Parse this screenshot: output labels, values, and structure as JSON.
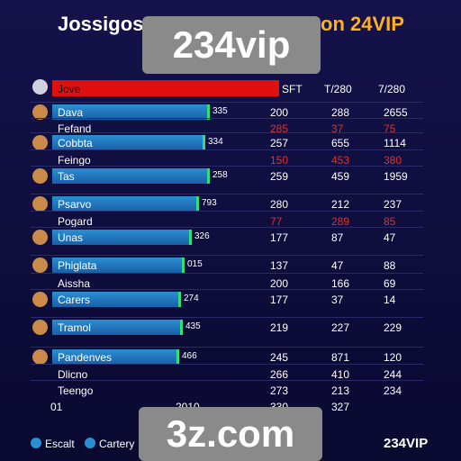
{
  "header": {
    "title_left": "Jossigos",
    "title_right": "on 24VIP",
    "overlay_top": "234vip"
  },
  "columns": {
    "name": "Jove",
    "c1": "SFT",
    "c2": "T/280",
    "c3": "7/280"
  },
  "rows": [
    {
      "name": "Dava",
      "tag": "335",
      "c1": "200",
      "c2": "288",
      "c3": "2655",
      "bar": true,
      "red": false
    },
    {
      "name": "Fefand",
      "c1": "285",
      "c2": "37",
      "c3": "75",
      "bar": false,
      "red": true
    },
    {
      "name": "Cobbta",
      "tag": "334",
      "c1": "257",
      "c2": "655",
      "c3": "1114",
      "bar": true,
      "red": false
    },
    {
      "name": "Feingo",
      "c1": "150",
      "c2": "453",
      "c3": "380",
      "bar": false,
      "red": true
    },
    {
      "name": "Tas",
      "tag": "258",
      "c1": "259",
      "c2": "459",
      "c3": "1959",
      "bar": true,
      "red": false
    },
    {
      "name": "Psarvo",
      "tag": "793",
      "c1": "280",
      "c2": "212",
      "c3": "237",
      "bar": true,
      "red": false
    },
    {
      "name": "Pogard",
      "c1": "77",
      "c2": "289",
      "c3": "85",
      "bar": false,
      "red": true
    },
    {
      "name": "Unas",
      "tag": "326",
      "c1": "177",
      "c2": "87",
      "c3": "47",
      "bar": true,
      "red": false
    },
    {
      "name": "Phiglata",
      "tag": "015",
      "c1": "137",
      "c2": "47",
      "c3": "88",
      "bar": true,
      "red": false
    },
    {
      "name": "Aissha",
      "c1": "200",
      "c2": "166",
      "c3": "69",
      "bar": false,
      "red": false
    },
    {
      "name": "Carers",
      "tag": "274",
      "c1": "177",
      "c2": "37",
      "c3": "14",
      "bar": true,
      "red": false
    },
    {
      "name": "Tramol",
      "tag": "435",
      "c1": "219",
      "c2": "227",
      "c3": "229",
      "bar": true,
      "red": false
    },
    {
      "name": "Pandenves",
      "tag": "466",
      "c1": "245",
      "c2": "871",
      "c3": "120",
      "bar": true,
      "red": false
    },
    {
      "name": "Dlicno",
      "c1": "266",
      "c2": "410",
      "c3": "244",
      "bar": false,
      "red": false
    },
    {
      "name": "Teengo",
      "c1": "273",
      "c2": "213",
      "c3": "234",
      "bar": false,
      "red": false
    }
  ],
  "footer": {
    "a": "01",
    "b": "2010",
    "c": "330",
    "d": "327"
  },
  "legend": [
    "Escalt",
    "Cartery"
  ],
  "overlay_bottom": "3z.com",
  "brand": "234VIP"
}
